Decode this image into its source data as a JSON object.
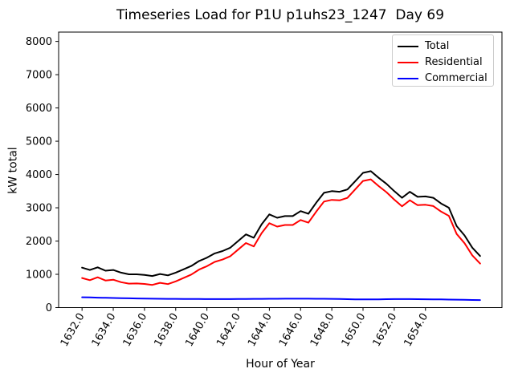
{
  "title": "Timeseries Load for P1U p1uhs23_1247  Day 69",
  "chart_data": {
    "type": "line",
    "title": "Timeseries Load for P1U p1uhs23_1247  Day 69",
    "xlabel": "Hour of Year",
    "ylabel": "kW total",
    "xlim": [
      1630.5,
      1658.9
    ],
    "ylim": [
      0,
      8280
    ],
    "grid": false,
    "x_tick_rotation": 60,
    "xticks": [
      1632,
      1634,
      1636,
      1638,
      1640,
      1642,
      1644,
      1646,
      1648,
      1650,
      1652,
      1654
    ],
    "xtick_labels": [
      "1632.0",
      "1634.0",
      "1636.0",
      "1638.0",
      "1640.0",
      "1642.0",
      "1644.0",
      "1646.0",
      "1648.0",
      "1650.0",
      "1652.0",
      "1654.0"
    ],
    "yticks": [
      0,
      1000,
      2000,
      3000,
      4000,
      5000,
      6000,
      7000,
      8000
    ],
    "ytick_labels": [
      "0",
      "1000",
      "2000",
      "3000",
      "4000",
      "5000",
      "6000",
      "7000",
      "8000"
    ],
    "x_start": 1632.0,
    "x_step": 0.5,
    "legend": {
      "position": "upper-right",
      "entries": [
        "Total",
        "Residential",
        "Commercial"
      ]
    },
    "series": [
      {
        "name": "Total",
        "color": "#000000",
        "values": [
          1200,
          1130,
          1210,
          1110,
          1130,
          1050,
          1000,
          1000,
          980,
          950,
          1010,
          970,
          1050,
          1150,
          1250,
          1400,
          1500,
          1630,
          1700,
          1800,
          2000,
          2200,
          2100,
          2500,
          2800,
          2700,
          2750,
          2750,
          2900,
          2820,
          3150,
          3450,
          3500,
          3480,
          3550,
          3800,
          4050,
          4100,
          3900,
          3720,
          3500,
          3300,
          3480,
          3330,
          3340,
          3300,
          3130,
          3000,
          2450,
          2170,
          1800,
          1550
        ]
      },
      {
        "name": "Residential",
        "color": "#ff0000",
        "values": [
          890,
          825,
          910,
          815,
          840,
          765,
          720,
          725,
          710,
          682,
          745,
          707,
          788,
          890,
          992,
          1143,
          1244,
          1375,
          1445,
          1544,
          1742,
          1940,
          1838,
          2237,
          2535,
          2434,
          2483,
          2482,
          2632,
          2553,
          2884,
          3186,
          3238,
          3222,
          3298,
          3552,
          3805,
          3854,
          3652,
          3468,
          3245,
          3044,
          3225,
          3077,
          3090,
          3052,
          2885,
          2758,
          2212,
          1936,
          1570,
          1324
        ]
      },
      {
        "name": "Commercial",
        "color": "#0000ff",
        "values": [
          310,
          305,
          300,
          295,
          290,
          285,
          280,
          275,
          270,
          268,
          265,
          263,
          262,
          260,
          258,
          257,
          256,
          255,
          255,
          256,
          258,
          260,
          262,
          263,
          265,
          266,
          267,
          268,
          268,
          267,
          266,
          264,
          262,
          258,
          252,
          248,
          245,
          246,
          248,
          252,
          255,
          256,
          255,
          253,
          250,
          248,
          245,
          242,
          238,
          234,
          230,
          226
        ]
      }
    ]
  }
}
